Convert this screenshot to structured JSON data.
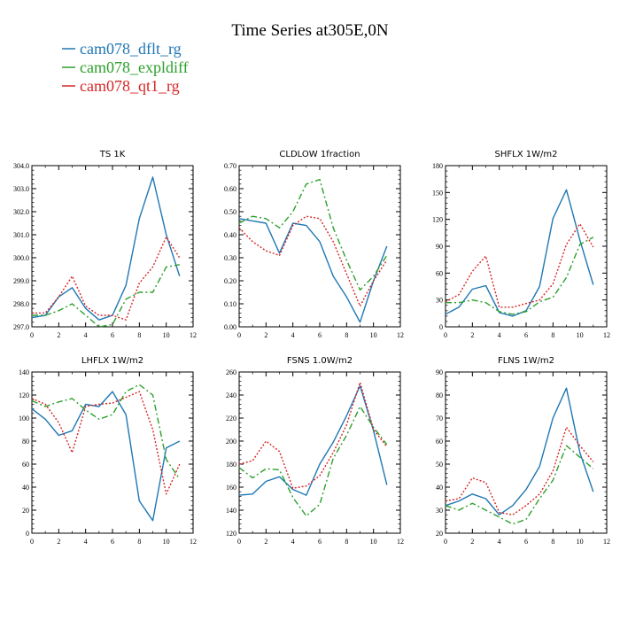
{
  "figure": {
    "title": "Time Series at305E,0N"
  },
  "legend": {
    "placement": "top-left",
    "entries": [
      {
        "name": "cam078_dflt_rg",
        "color": "#1f77b4",
        "dash": "solid"
      },
      {
        "name": "cam078_expldiff",
        "color": "#2ca02c",
        "dash": "dashdot"
      },
      {
        "name": "cam078_qt1_rg",
        "color": "#d62728",
        "dash": "dotted"
      }
    ]
  },
  "chart_data": [
    {
      "type": "line",
      "title": "TS   1K",
      "xlim": [
        0,
        12
      ],
      "ylim": [
        297,
        304
      ],
      "xticks": [
        0,
        2,
        4,
        6,
        8,
        10,
        12
      ],
      "yticks": [
        "297.0",
        "298.0",
        "299.0",
        "300.0",
        "301.0",
        "302.0",
        "303.0",
        "304.0"
      ],
      "yticks_values": [
        297,
        298,
        299,
        300,
        301,
        302,
        303,
        304
      ],
      "x": [
        0,
        1,
        2,
        3,
        4,
        5,
        6,
        7,
        8,
        9,
        10,
        11
      ],
      "series": [
        {
          "name": "cam078_dflt_rg",
          "values": [
            297.4,
            297.5,
            298.3,
            298.7,
            297.8,
            297.3,
            297.5,
            298.8,
            301.7,
            303.5,
            301.0,
            299.2
          ]
        },
        {
          "name": "cam078_expldiff",
          "values": [
            297.5,
            297.5,
            297.7,
            298.0,
            297.5,
            297.0,
            297.1,
            298.2,
            298.5,
            298.5,
            299.6,
            299.7
          ]
        },
        {
          "name": "cam078_qt1_rg",
          "values": [
            297.6,
            297.6,
            298.3,
            299.2,
            297.9,
            297.5,
            297.5,
            297.3,
            298.9,
            299.6,
            300.9,
            300.0
          ]
        }
      ]
    },
    {
      "type": "line",
      "title": "CLDLOW   1fraction",
      "xlim": [
        0,
        12
      ],
      "ylim": [
        0,
        0.7
      ],
      "xticks": [
        0,
        2,
        4,
        6,
        8,
        10,
        12
      ],
      "yticks": [
        "0.00",
        "0.10",
        "0.20",
        "0.30",
        "0.40",
        "0.50",
        "0.60",
        "0.70"
      ],
      "yticks_values": [
        0,
        0.1,
        0.2,
        0.3,
        0.4,
        0.5,
        0.6,
        0.7
      ],
      "x": [
        0,
        1,
        2,
        3,
        4,
        5,
        6,
        7,
        8,
        9,
        10,
        11
      ],
      "series": [
        {
          "name": "cam078_dflt_rg",
          "values": [
            0.47,
            0.46,
            0.45,
            0.32,
            0.45,
            0.44,
            0.37,
            0.22,
            0.13,
            0.02,
            0.2,
            0.35
          ]
        },
        {
          "name": "cam078_expldiff",
          "values": [
            0.45,
            0.48,
            0.47,
            0.43,
            0.5,
            0.62,
            0.64,
            0.43,
            0.29,
            0.16,
            0.22,
            0.31
          ]
        },
        {
          "name": "cam078_qt1_rg",
          "values": [
            0.43,
            0.37,
            0.33,
            0.31,
            0.44,
            0.48,
            0.47,
            0.37,
            0.23,
            0.09,
            0.2,
            0.29
          ]
        }
      ]
    },
    {
      "type": "line",
      "title": "SHFLX   1W/m2",
      "xlim": [
        0,
        12
      ],
      "ylim": [
        0,
        180
      ],
      "xticks": [
        0,
        2,
        4,
        6,
        8,
        10,
        12
      ],
      "yticks": [
        "0",
        "30",
        "60",
        "90",
        "120",
        "150",
        "180"
      ],
      "yticks_values": [
        0,
        30,
        60,
        90,
        120,
        150,
        180
      ],
      "x": [
        0,
        1,
        2,
        3,
        4,
        5,
        6,
        7,
        8,
        9,
        10,
        11
      ],
      "series": [
        {
          "name": "cam078_dflt_rg",
          "values": [
            14,
            22,
            42,
            46,
            16,
            12,
            18,
            45,
            121,
            153,
            97,
            47
          ]
        },
        {
          "name": "cam078_expldiff",
          "values": [
            27,
            27,
            30,
            27,
            17,
            14,
            17,
            28,
            33,
            55,
            92,
            100
          ]
        },
        {
          "name": "cam078_qt1_rg",
          "values": [
            28,
            36,
            62,
            79,
            22,
            22,
            26,
            30,
            48,
            92,
            115,
            89
          ]
        }
      ]
    },
    {
      "type": "line",
      "title": "LHFLX   1W/m2",
      "xlim": [
        0,
        12
      ],
      "ylim": [
        0,
        140
      ],
      "xticks": [
        0,
        2,
        4,
        6,
        8,
        10,
        12
      ],
      "yticks": [
        "0",
        "20",
        "40",
        "60",
        "80",
        "100",
        "120",
        "140"
      ],
      "yticks_values": [
        0,
        20,
        40,
        60,
        80,
        100,
        120,
        140
      ],
      "x": [
        0,
        1,
        2,
        3,
        4,
        5,
        6,
        7,
        8,
        9,
        10,
        11
      ],
      "series": [
        {
          "name": "cam078_dflt_rg",
          "values": [
            108,
            99,
            85,
            89,
            112,
            110,
            123,
            103,
            28,
            11,
            74,
            80
          ]
        },
        {
          "name": "cam078_expldiff",
          "values": [
            115,
            110,
            114,
            117,
            107,
            99,
            103,
            123,
            129,
            120,
            64,
            47
          ]
        },
        {
          "name": "cam078_qt1_rg",
          "values": [
            117,
            112,
            96,
            70,
            110,
            112,
            113,
            118,
            123,
            90,
            34,
            60
          ]
        }
      ]
    },
    {
      "type": "line",
      "title": "FSNS   1.0W/m2",
      "xlim": [
        0,
        12
      ],
      "ylim": [
        120,
        260
      ],
      "xticks": [
        0,
        2,
        4,
        6,
        8,
        10,
        12
      ],
      "yticks": [
        "120",
        "140",
        "160",
        "180",
        "200",
        "220",
        "240",
        "260"
      ],
      "yticks_values": [
        120,
        140,
        160,
        180,
        200,
        220,
        240,
        260
      ],
      "x": [
        0,
        1,
        2,
        3,
        4,
        5,
        6,
        7,
        8,
        9,
        10,
        11
      ],
      "series": [
        {
          "name": "cam078_dflt_rg",
          "values": [
            153,
            154,
            165,
            169,
            158,
            153,
            180,
            199,
            222,
            248,
            209,
            162
          ]
        },
        {
          "name": "cam078_expldiff",
          "values": [
            177,
            168,
            176,
            175,
            151,
            135,
            145,
            185,
            205,
            230,
            212,
            197
          ]
        },
        {
          "name": "cam078_qt1_rg",
          "values": [
            180,
            183,
            200,
            191,
            159,
            161,
            170,
            190,
            214,
            251,
            210,
            195
          ]
        }
      ]
    },
    {
      "type": "line",
      "title": "FLNS   1W/m2",
      "xlim": [
        0,
        12
      ],
      "ylim": [
        20,
        90
      ],
      "xticks": [
        0,
        2,
        4,
        6,
        8,
        10,
        12
      ],
      "yticks": [
        "20",
        "30",
        "40",
        "50",
        "60",
        "70",
        "80",
        "90"
      ],
      "yticks_values": [
        20,
        30,
        40,
        50,
        60,
        70,
        80,
        90
      ],
      "x": [
        0,
        1,
        2,
        3,
        4,
        5,
        6,
        7,
        8,
        9,
        10,
        11
      ],
      "series": [
        {
          "name": "cam078_dflt_rg",
          "values": [
            32,
            34,
            37,
            35,
            28,
            32,
            39,
            49,
            70,
            83,
            55,
            38
          ]
        },
        {
          "name": "cam078_expldiff",
          "values": [
            32,
            30,
            33,
            30,
            27,
            24,
            26,
            35,
            43,
            58,
            53,
            48
          ]
        },
        {
          "name": "cam078_qt1_rg",
          "values": [
            34,
            35,
            44,
            42,
            29,
            28,
            32,
            37,
            47,
            66,
            58,
            51
          ]
        }
      ]
    }
  ]
}
